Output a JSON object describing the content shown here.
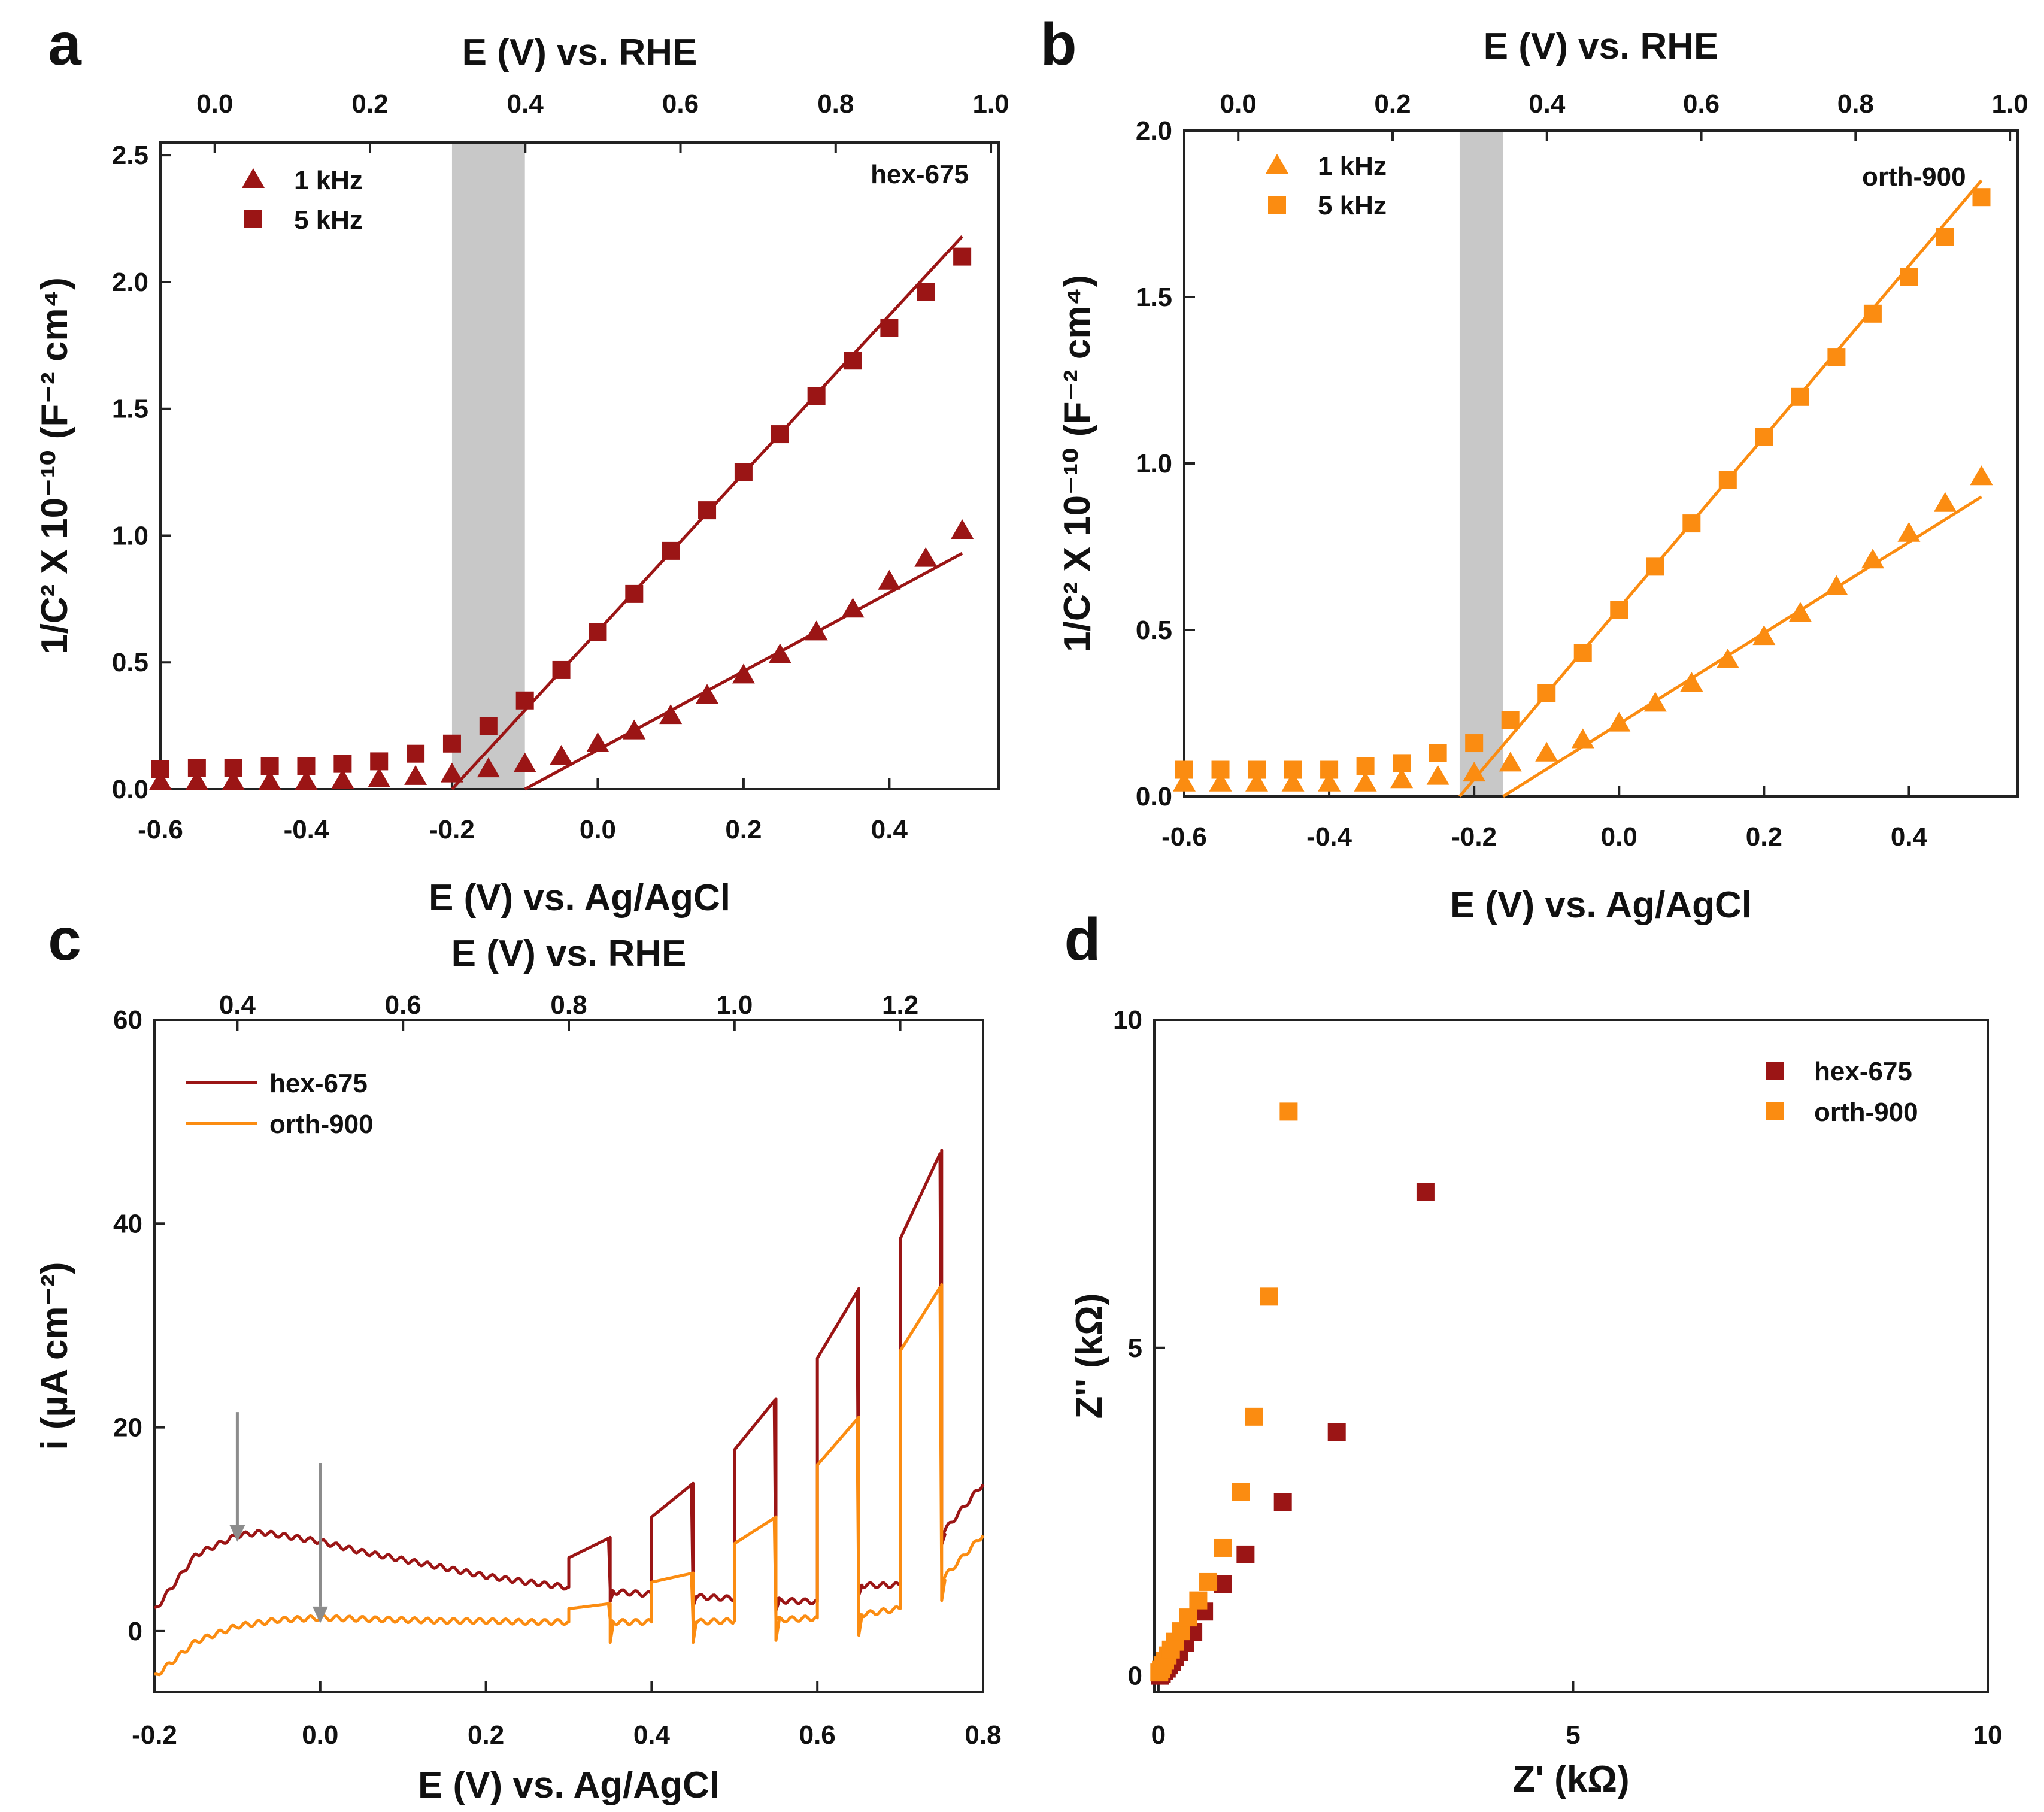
{
  "colors": {
    "hex": "#9b1515",
    "orth": "#fb8c11",
    "shade": "#c8c8c8",
    "arrow": "#8c8c8c"
  },
  "chart_data": [
    {
      "panel": "a",
      "type": "scatter",
      "title": "",
      "xlabel": "E (V) vs. Ag/AgCl",
      "ylabel": "1/C² X 10⁻¹⁰ (F⁻² cm⁴)",
      "top_xlabel": "E (V) vs. RHE",
      "xlim": [
        -0.6,
        0.55
      ],
      "ylim": [
        0,
        2.55
      ],
      "xticks": [
        "-0.6",
        "-0.4",
        "-0.2",
        "0.0",
        "0.2",
        "0.4"
      ],
      "yticks": [
        "0.0",
        "0.5",
        "1.0",
        "1.5",
        "2.0",
        "2.5"
      ],
      "top_xlim": [
        -0.07,
        1.01
      ],
      "top_xticks": [
        "0.0",
        "0.2",
        "0.4",
        "0.6",
        "0.8",
        "1.0"
      ],
      "shaded_band": [
        -0.2,
        -0.1
      ],
      "annotation": "hex-675",
      "series": [
        {
          "name": "1 kHz",
          "marker": "triangle",
          "color": "#9b1515",
          "x": [
            -0.6,
            -0.55,
            -0.5,
            -0.45,
            -0.4,
            -0.35,
            -0.3,
            -0.25,
            -0.2,
            -0.15,
            -0.1,
            -0.05,
            0.0,
            0.05,
            0.1,
            0.15,
            0.2,
            0.25,
            0.3,
            0.35,
            0.4,
            0.45,
            0.5
          ],
          "y": [
            0.03,
            0.03,
            0.03,
            0.03,
            0.03,
            0.035,
            0.04,
            0.05,
            0.06,
            0.08,
            0.1,
            0.13,
            0.18,
            0.23,
            0.29,
            0.37,
            0.45,
            0.53,
            0.62,
            0.71,
            0.82,
            0.91,
            1.02
          ]
        },
        {
          "name": "5 kHz",
          "marker": "square",
          "color": "#9b1515",
          "x": [
            -0.6,
            -0.55,
            -0.5,
            -0.45,
            -0.4,
            -0.35,
            -0.3,
            -0.25,
            -0.2,
            -0.15,
            -0.1,
            -0.05,
            0.0,
            0.05,
            0.1,
            0.15,
            0.2,
            0.25,
            0.3,
            0.35,
            0.4,
            0.45,
            0.5
          ],
          "y": [
            0.08,
            0.085,
            0.085,
            0.09,
            0.09,
            0.1,
            0.11,
            0.14,
            0.18,
            0.25,
            0.35,
            0.47,
            0.62,
            0.77,
            0.94,
            1.1,
            1.25,
            1.4,
            1.55,
            1.69,
            1.82,
            1.96,
            2.1
          ]
        }
      ],
      "fits": [
        {
          "series": "5 kHz",
          "x": [
            -0.2,
            0.5
          ],
          "y": [
            0.0,
            2.18
          ]
        },
        {
          "series": "1 kHz",
          "x": [
            -0.1,
            0.5
          ],
          "y": [
            0.0,
            0.93
          ]
        }
      ]
    },
    {
      "panel": "b",
      "type": "scatter",
      "title": "",
      "xlabel": "E (V) vs. Ag/AgCl",
      "ylabel": "1/C² X 10⁻¹⁰ (F⁻² cm⁴)",
      "top_xlabel": "E (V) vs. RHE",
      "xlim": [
        -0.6,
        0.55
      ],
      "ylim": [
        0,
        2.0
      ],
      "xticks": [
        "-0.6",
        "-0.4",
        "-0.2",
        "0.0",
        "0.2",
        "0.4"
      ],
      "yticks": [
        "0.0",
        "0.5",
        "1.0",
        "1.5",
        "2.0"
      ],
      "top_xlim": [
        -0.07,
        1.01
      ],
      "top_xticks": [
        "0.0",
        "0.2",
        "0.4",
        "0.6",
        "0.8",
        "1.0"
      ],
      "shaded_band": [
        -0.22,
        -0.16
      ],
      "annotation": "orth-900",
      "series": [
        {
          "name": "1 kHz",
          "marker": "triangle",
          "color": "#fb8c11",
          "x": [
            -0.6,
            -0.55,
            -0.5,
            -0.45,
            -0.4,
            -0.35,
            -0.3,
            -0.25,
            -0.2,
            -0.15,
            -0.1,
            -0.05,
            0.0,
            0.05,
            0.1,
            0.15,
            0.2,
            0.25,
            0.3,
            0.35,
            0.4,
            0.45,
            0.5
          ],
          "y": [
            0.04,
            0.04,
            0.04,
            0.04,
            0.04,
            0.04,
            0.05,
            0.06,
            0.07,
            0.1,
            0.13,
            0.17,
            0.22,
            0.28,
            0.34,
            0.41,
            0.48,
            0.55,
            0.63,
            0.71,
            0.79,
            0.88,
            0.96
          ]
        },
        {
          "name": "5 kHz",
          "marker": "square",
          "color": "#fb8c11",
          "x": [
            -0.6,
            -0.55,
            -0.5,
            -0.45,
            -0.4,
            -0.35,
            -0.3,
            -0.25,
            -0.2,
            -0.15,
            -0.1,
            -0.05,
            0.0,
            0.05,
            0.1,
            0.15,
            0.2,
            0.25,
            0.3,
            0.35,
            0.4,
            0.45,
            0.5
          ],
          "y": [
            0.08,
            0.08,
            0.08,
            0.08,
            0.08,
            0.09,
            0.1,
            0.13,
            0.16,
            0.23,
            0.31,
            0.43,
            0.56,
            0.69,
            0.82,
            0.95,
            1.08,
            1.2,
            1.32,
            1.45,
            1.56,
            1.68,
            1.8
          ]
        }
      ],
      "fits": [
        {
          "series": "5 kHz",
          "x": [
            -0.22,
            0.5
          ],
          "y": [
            0.0,
            1.85
          ]
        },
        {
          "series": "1 kHz",
          "x": [
            -0.16,
            0.5
          ],
          "y": [
            0.0,
            0.9
          ]
        }
      ]
    },
    {
      "panel": "c",
      "type": "line",
      "title": "",
      "xlabel": "E (V) vs. Ag/AgCl",
      "ylabel": "i (µA cm⁻²)",
      "top_xlabel": "E (V) vs. RHE",
      "xlim": [
        -0.2,
        0.8
      ],
      "ylim": [
        -6,
        60
      ],
      "xticks": [
        "-0.2",
        "0.0",
        "0.2",
        "0.4",
        "0.6",
        "0.8"
      ],
      "yticks": [
        "0",
        "20",
        "40",
        "60"
      ],
      "top_xlim": [
        0.3,
        1.3
      ],
      "top_xticks": [
        "0.4",
        "0.6",
        "0.8",
        "1.0",
        "1.2"
      ],
      "arrows_at_x": [
        -0.1,
        0.0
      ],
      "chopped_light": {
        "on_intervals": [
          [
            0.3,
            0.35
          ],
          [
            0.4,
            0.45
          ],
          [
            0.5,
            0.55
          ],
          [
            0.6,
            0.65
          ],
          [
            0.7,
            0.75
          ]
        ]
      },
      "series": [
        {
          "name": "hex-675",
          "color": "#9b1515",
          "dark_baseline": {
            "x": [
              -0.2,
              -0.15,
              -0.1,
              -0.07,
              0.0,
              0.05,
              0.1,
              0.15,
              0.2,
              0.25,
              0.3,
              0.35,
              0.4,
              0.45,
              0.5,
              0.55,
              0.6,
              0.65,
              0.7,
              0.75,
              0.8
            ],
            "y": [
              2,
              7.5,
              9.4,
              9.7,
              8.8,
              7.8,
              7.0,
              6.2,
              5.4,
              4.8,
              4.3,
              3.9,
              3.6,
              3.4,
              3.2,
              3.0,
              2.9,
              4.5,
              4.5,
              9.5,
              14.5
            ]
          },
          "light_on": [
            {
              "x": [
                0.3,
                0.35
              ],
              "y": [
                7.2,
                9.2
              ]
            },
            {
              "x": [
                0.4,
                0.45
              ],
              "y": [
                11.2,
                14.5
              ]
            },
            {
              "x": [
                0.5,
                0.55
              ],
              "y": [
                17.8,
                22.8
              ]
            },
            {
              "x": [
                0.6,
                0.65
              ],
              "y": [
                26.8,
                33.6
              ]
            },
            {
              "x": [
                0.7,
                0.75
              ],
              "y": [
                38.5,
                47.2
              ]
            }
          ]
        },
        {
          "name": "orth-900",
          "color": "#fb8c11",
          "dark_baseline": {
            "x": [
              -0.2,
              -0.15,
              -0.1,
              -0.05,
              0.0,
              0.05,
              0.1,
              0.15,
              0.2,
              0.25,
              0.3,
              0.35,
              0.4,
              0.45,
              0.5,
              0.55,
              0.6,
              0.65,
              0.7,
              0.75,
              0.8
            ],
            "y": [
              -4.5,
              -1.0,
              0.5,
              1.1,
              1.3,
              1.2,
              1.1,
              1.0,
              1.0,
              0.9,
              0.9,
              0.9,
              0.9,
              0.9,
              1.0,
              1.1,
              1.3,
              1.6,
              2.2,
              5.0,
              9.5
            ]
          },
          "light_on": [
            {
              "x": [
                0.3,
                0.35
              ],
              "y": [
                2.2,
                2.7
              ]
            },
            {
              "x": [
                0.4,
                0.45
              ],
              "y": [
                4.8,
                5.7
              ]
            },
            {
              "x": [
                0.5,
                0.55
              ],
              "y": [
                8.6,
                11.2
              ]
            },
            {
              "x": [
                0.6,
                0.65
              ],
              "y": [
                16.3,
                21.0
              ]
            },
            {
              "x": [
                0.7,
                0.75
              ],
              "y": [
                27.5,
                34.0
              ]
            }
          ]
        }
      ]
    },
    {
      "panel": "d",
      "type": "scatter",
      "title": "",
      "xlabel": "Z' (kΩ)",
      "ylabel": "Z'' (kΩ)",
      "xlim": [
        -0.05,
        10
      ],
      "ylim": [
        -0.25,
        10
      ],
      "xticks": [
        "0",
        "5",
        "10"
      ],
      "yticks": [
        "0",
        "5",
        "10"
      ],
      "series": [
        {
          "name": "hex-675",
          "marker": "square",
          "color": "#9b1515",
          "x": [
            0.02,
            0.04,
            0.07,
            0.1,
            0.13,
            0.16,
            0.2,
            0.25,
            0.32,
            0.42,
            0.55,
            0.78,
            1.05,
            1.5,
            2.15,
            3.22
          ],
          "y": [
            0.0,
            0.03,
            0.07,
            0.11,
            0.16,
            0.21,
            0.28,
            0.37,
            0.5,
            0.67,
            0.98,
            1.4,
            1.85,
            2.65,
            3.72,
            7.38
          ]
        },
        {
          "name": "orth-900",
          "marker": "square",
          "color": "#fb8c11",
          "x": [
            0.01,
            0.03,
            0.05,
            0.08,
            0.11,
            0.15,
            0.2,
            0.27,
            0.36,
            0.48,
            0.6,
            0.78,
            0.99,
            1.15,
            1.33,
            1.57
          ],
          "y": [
            0.05,
            0.1,
            0.16,
            0.23,
            0.31,
            0.4,
            0.52,
            0.68,
            0.89,
            1.15,
            1.43,
            1.95,
            2.8,
            3.95,
            5.78,
            8.6
          ]
        }
      ]
    }
  ]
}
